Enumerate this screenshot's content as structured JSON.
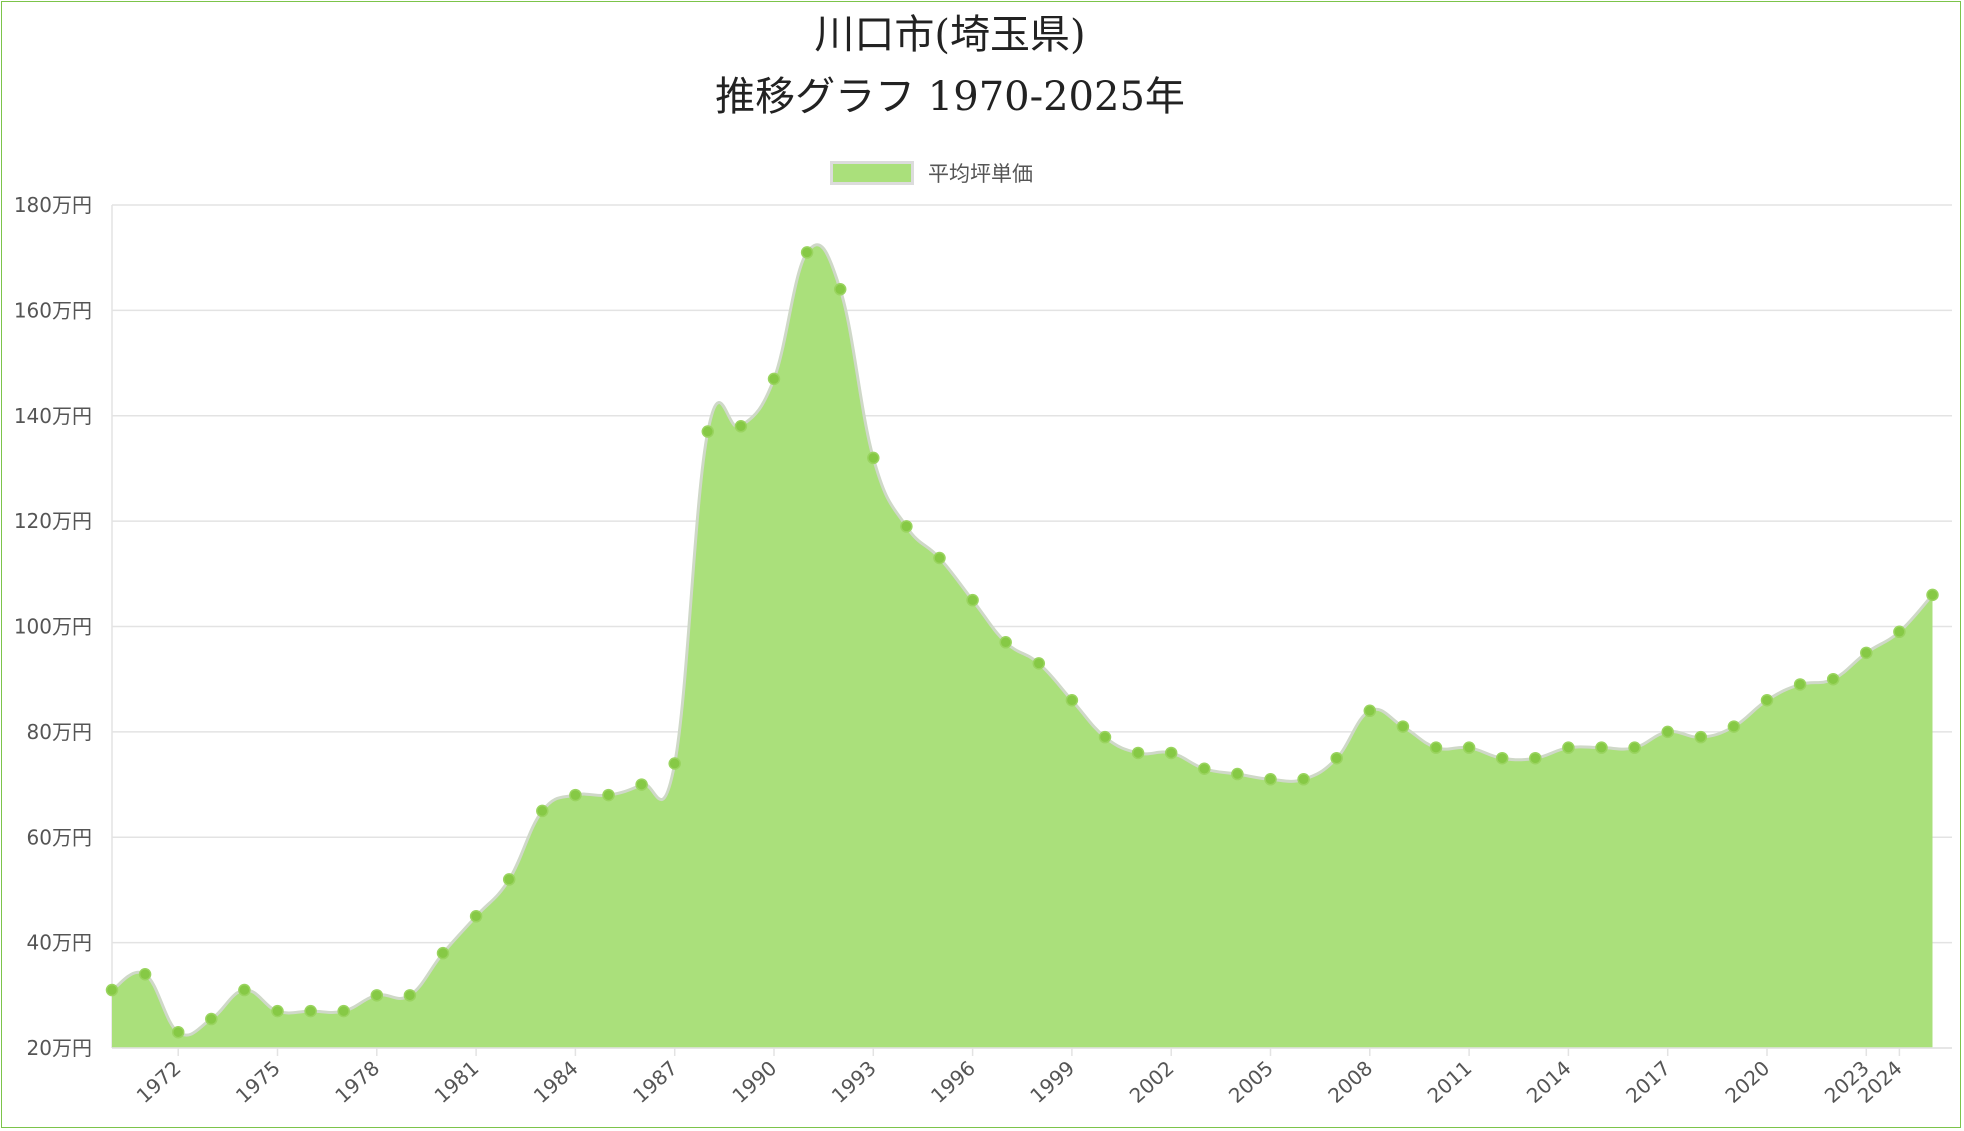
{
  "chart_data": {
    "type": "area",
    "title": [
      "川口市(埼玉県)",
      "推移グラフ 1970-2025年"
    ],
    "legend": {
      "label": "平均坪単価",
      "position": "top-center"
    },
    "colors": {
      "fill": "#aae07b",
      "line": "#cfd8c8",
      "point": "#86c945",
      "grid": "#e3e3e3",
      "frame": "#7cc44a"
    },
    "ylim": [
      20,
      180
    ],
    "yticks": [
      20,
      40,
      60,
      80,
      100,
      120,
      140,
      160,
      180
    ],
    "ytick_suffix": "万円",
    "xticks": [
      1972,
      1975,
      1978,
      1981,
      1984,
      1987,
      1990,
      1993,
      1996,
      1999,
      2002,
      2005,
      2008,
      2011,
      2014,
      2017,
      2020,
      2023,
      2024
    ],
    "grid": true,
    "x": [
      1970,
      1971,
      1972,
      1973,
      1974,
      1975,
      1976,
      1977,
      1978,
      1979,
      1980,
      1981,
      1982,
      1983,
      1984,
      1985,
      1986,
      1987,
      1988,
      1989,
      1990,
      1991,
      1992,
      1993,
      1994,
      1995,
      1996,
      1997,
      1998,
      1999,
      2000,
      2001,
      2002,
      2003,
      2004,
      2005,
      2006,
      2007,
      2008,
      2009,
      2010,
      2011,
      2012,
      2013,
      2014,
      2015,
      2016,
      2017,
      2018,
      2019,
      2020,
      2021,
      2022,
      2023,
      2024,
      2025
    ],
    "values": [
      31,
      34,
      23,
      25.5,
      31,
      27,
      27,
      27,
      30,
      30,
      38,
      45,
      52,
      65,
      68,
      68,
      70,
      74,
      137,
      138,
      147,
      171,
      164,
      132,
      119,
      113,
      105,
      97,
      93,
      86,
      79,
      76,
      76,
      73,
      72,
      71,
      71,
      75,
      84,
      81,
      77,
      77,
      75,
      75,
      77,
      77,
      77,
      80,
      79,
      81,
      86,
      89,
      90,
      95,
      99,
      106
    ]
  }
}
